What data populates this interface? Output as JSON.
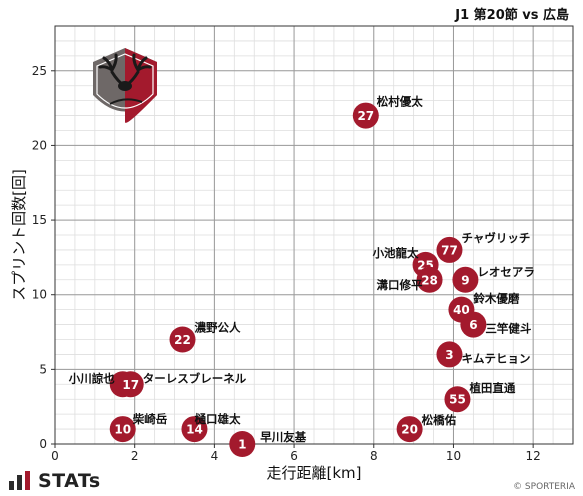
{
  "header": {
    "title": "J1 第20節 vs 広島"
  },
  "brand": {
    "name": "STATs",
    "copyright": "© SPORTERIA"
  },
  "colors": {
    "marker": "#a31a2d",
    "grid_major": "#9a9a9a",
    "grid_minor": "#dedede",
    "axis": "#333333"
  },
  "chart_data": {
    "type": "scatter",
    "xlabel": "走行距離[km]",
    "ylabel": "スプリント回数[回]",
    "xlim": [
      0,
      13
    ],
    "ylim": [
      0,
      28
    ],
    "xticks": [
      0,
      2,
      4,
      6,
      8,
      10,
      12
    ],
    "yticks": [
      0,
      5,
      10,
      15,
      20,
      25
    ],
    "grid": true,
    "points": [
      {
        "number": "27",
        "name": "松村優太",
        "x": 7.8,
        "y": 22
      },
      {
        "number": "77",
        "name": "チャヴリッチ",
        "x": 9.9,
        "y": 13
      },
      {
        "number": "25",
        "name": "小池龍太",
        "x": 9.3,
        "y": 12
      },
      {
        "number": "28",
        "name": "溝口修平",
        "x": 9.4,
        "y": 11
      },
      {
        "number": "9",
        "name": "レオセアラ",
        "x": 10.3,
        "y": 11
      },
      {
        "number": "40",
        "name": "鈴木優磨",
        "x": 10.2,
        "y": 9
      },
      {
        "number": "6",
        "name": "三竿健斗",
        "x": 10.5,
        "y": 8
      },
      {
        "number": "3",
        "name": "キムテヒョン",
        "x": 9.9,
        "y": 6
      },
      {
        "number": "55",
        "name": "植田直通",
        "x": 10.1,
        "y": 3
      },
      {
        "number": "20",
        "name": "松橋佑",
        "x": 8.9,
        "y": 1
      },
      {
        "number": "22",
        "name": "濃野公人",
        "x": 3.2,
        "y": 7
      },
      {
        "number": "7",
        "name": "小川諒也",
        "x": 1.7,
        "y": 4
      },
      {
        "number": "17",
        "name": "ターレスブレーネル",
        "x": 1.9,
        "y": 4
      },
      {
        "number": "10",
        "name": "柴崎岳",
        "x": 1.7,
        "y": 1
      },
      {
        "number": "14",
        "name": "樋口雄太",
        "x": 3.5,
        "y": 1
      },
      {
        "number": "1",
        "name": "早川友基",
        "x": 4.7,
        "y": 0
      }
    ]
  }
}
